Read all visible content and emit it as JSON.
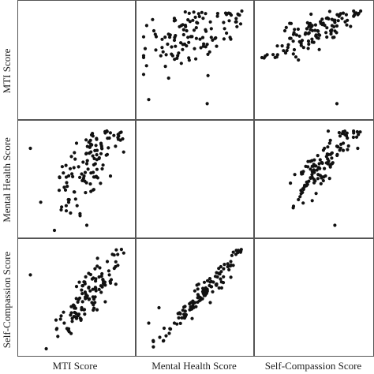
{
  "chart_data": {
    "type": "scatter",
    "subtype": "scatterplot-matrix",
    "variables": [
      "MTI Score",
      "Mental Health Score",
      "Self-Compassion Score"
    ],
    "grid": "panel-borders",
    "diagonal": "empty",
    "points_approx": 600,
    "colors": {
      "points": "#111111",
      "frame": "#555555",
      "background": "#ffffff"
    },
    "normalized_range": [
      0,
      1
    ],
    "pairs": [
      {
        "x": "Mental Health Score",
        "y": "MTI Score",
        "points": [
          [
            0.05,
            0.12
          ],
          [
            0.42,
            0.78
          ],
          [
            0.83,
            0.95
          ],
          [
            0.22,
            0.55
          ],
          [
            0.1,
            0.78
          ],
          [
            0.3,
            0.9
          ],
          [
            0.62,
            0.65
          ],
          [
            0.91,
            0.82
          ],
          [
            0.55,
            0.7
          ],
          [
            0.18,
            0.62
          ],
          [
            0.48,
            0.88
          ],
          [
            0.72,
            0.92
          ],
          [
            0.38,
            0.6
          ],
          [
            0.66,
            0.8
          ],
          [
            0.85,
            0.7
          ],
          [
            0.26,
            0.74
          ],
          [
            0.44,
            0.52
          ],
          [
            0.58,
            0.9
          ],
          [
            0.78,
            0.86
          ],
          [
            0.35,
            0.82
          ]
        ],
        "outliers": [
          [
            0.03,
            0.83
          ],
          [
            0.62,
            0.08
          ]
        ]
      },
      {
        "x": "Self-Compassion Score",
        "y": "MTI Score",
        "points": [
          [
            0.15,
            0.55
          ],
          [
            0.45,
            0.82
          ],
          [
            0.78,
            0.95
          ],
          [
            0.3,
            0.68
          ],
          [
            0.62,
            0.9
          ],
          [
            0.88,
            0.92
          ],
          [
            0.52,
            0.74
          ],
          [
            0.22,
            0.78
          ],
          [
            0.7,
            0.86
          ],
          [
            0.4,
            0.62
          ],
          [
            0.82,
            0.88
          ],
          [
            0.35,
            0.5
          ],
          [
            0.58,
            0.84
          ],
          [
            0.66,
            0.78
          ],
          [
            0.48,
            0.7
          ],
          [
            0.28,
            0.85
          ],
          [
            0.74,
            0.92
          ],
          [
            0.55,
            0.6
          ],
          [
            0.92,
            0.94
          ],
          [
            0.42,
            0.76
          ]
        ],
        "outliers": [
          [
            0.72,
            0.08
          ],
          [
            0.05,
            0.55
          ]
        ]
      },
      {
        "x": "MTI Score",
        "y": "Mental Health Score",
        "points": [
          [
            0.45,
            0.72
          ],
          [
            0.62,
            0.86
          ],
          [
            0.78,
            0.95
          ],
          [
            0.55,
            0.55
          ],
          [
            0.7,
            0.78
          ],
          [
            0.38,
            0.42
          ],
          [
            0.82,
            0.9
          ],
          [
            0.6,
            0.65
          ],
          [
            0.5,
            0.85
          ],
          [
            0.75,
            0.6
          ],
          [
            0.66,
            0.92
          ],
          [
            0.42,
            0.3
          ],
          [
            0.58,
            0.48
          ],
          [
            0.88,
            0.82
          ],
          [
            0.72,
            0.7
          ],
          [
            0.35,
            0.2
          ],
          [
            0.64,
            0.38
          ],
          [
            0.8,
            0.74
          ],
          [
            0.52,
            0.62
          ],
          [
            0.68,
            0.52
          ]
        ],
        "outliers": [
          [
            0.05,
            0.8
          ],
          [
            0.6,
            0.05
          ]
        ]
      },
      {
        "x": "Self-Compassion Score",
        "y": "Mental Health Score",
        "points": [
          [
            0.35,
            0.3
          ],
          [
            0.55,
            0.65
          ],
          [
            0.72,
            0.82
          ],
          [
            0.45,
            0.48
          ],
          [
            0.62,
            0.72
          ],
          [
            0.82,
            0.9
          ],
          [
            0.5,
            0.58
          ],
          [
            0.3,
            0.22
          ],
          [
            0.68,
            0.66
          ],
          [
            0.4,
            0.4
          ],
          [
            0.78,
            0.78
          ],
          [
            0.58,
            0.52
          ],
          [
            0.88,
            0.95
          ],
          [
            0.48,
            0.68
          ],
          [
            0.65,
            0.85
          ],
          [
            0.38,
            0.55
          ],
          [
            0.75,
            0.92
          ],
          [
            0.52,
            0.36
          ],
          [
            0.6,
            0.8
          ],
          [
            0.44,
            0.62
          ]
        ],
        "outliers": [
          [
            0.7,
            0.05
          ],
          [
            0.92,
            0.8
          ]
        ]
      },
      {
        "x": "MTI Score",
        "y": "Self-Compassion Score",
        "points": [
          [
            0.45,
            0.35
          ],
          [
            0.62,
            0.6
          ],
          [
            0.8,
            0.85
          ],
          [
            0.55,
            0.4
          ],
          [
            0.72,
            0.7
          ],
          [
            0.38,
            0.25
          ],
          [
            0.85,
            0.92
          ],
          [
            0.6,
            0.5
          ],
          [
            0.68,
            0.78
          ],
          [
            0.5,
            0.3
          ],
          [
            0.78,
            0.62
          ],
          [
            0.42,
            0.18
          ],
          [
            0.65,
            0.45
          ],
          [
            0.88,
            0.8
          ],
          [
            0.58,
            0.65
          ],
          [
            0.35,
            0.32
          ],
          [
            0.74,
            0.55
          ],
          [
            0.82,
            0.72
          ],
          [
            0.52,
            0.48
          ],
          [
            0.7,
            0.38
          ]
        ],
        "outliers": [
          [
            0.05,
            0.72
          ],
          [
            0.3,
            0.28
          ]
        ]
      },
      {
        "x": "Mental Health Score",
        "y": "Self-Compassion Score",
        "points": [
          [
            0.3,
            0.25
          ],
          [
            0.5,
            0.45
          ],
          [
            0.72,
            0.7
          ],
          [
            0.4,
            0.3
          ],
          [
            0.62,
            0.58
          ],
          [
            0.85,
            0.85
          ],
          [
            0.55,
            0.5
          ],
          [
            0.25,
            0.15
          ],
          [
            0.68,
            0.65
          ],
          [
            0.45,
            0.38
          ],
          [
            0.78,
            0.78
          ],
          [
            0.35,
            0.35
          ],
          [
            0.6,
            0.52
          ],
          [
            0.9,
            0.92
          ],
          [
            0.52,
            0.62
          ],
          [
            0.2,
            0.2
          ],
          [
            0.75,
            0.68
          ],
          [
            0.65,
            0.45
          ],
          [
            0.82,
            0.8
          ],
          [
            0.48,
            0.42
          ]
        ],
        "outliers": [
          [
            0.05,
            0.25
          ],
          [
            0.15,
            0.4
          ]
        ]
      }
    ]
  }
}
